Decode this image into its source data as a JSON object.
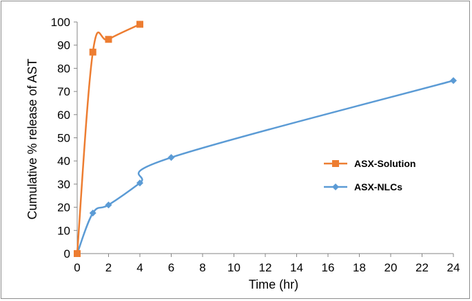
{
  "chart_data": {
    "type": "line",
    "title": "",
    "xlabel": "Time (hr)",
    "ylabel": "Cumulative % release of AST",
    "xlim": [
      0,
      24
    ],
    "ylim": [
      0,
      100
    ],
    "xticks": [
      0,
      2,
      4,
      6,
      8,
      10,
      12,
      14,
      16,
      18,
      20,
      22,
      24
    ],
    "yticks": [
      0,
      10,
      20,
      30,
      40,
      50,
      60,
      70,
      80,
      90,
      100
    ],
    "grid": false,
    "legend_position": "right",
    "series": [
      {
        "name": "ASX-Solution",
        "color": "#ed7d31",
        "marker": "square",
        "points": [
          {
            "x": 0,
            "y": 0
          },
          {
            "x": 1,
            "y": 87
          },
          {
            "x": 2,
            "y": 92.5
          },
          {
            "x": 4,
            "y": 99
          }
        ]
      },
      {
        "name": "ASX-NLCs",
        "color": "#5b9bd5",
        "marker": "diamond",
        "points": [
          {
            "x": 0,
            "y": 0
          },
          {
            "x": 1,
            "y": 17.5
          },
          {
            "x": 2,
            "y": 21
          },
          {
            "x": 4,
            "y": 30.5
          },
          {
            "x": 6,
            "y": 41.5
          },
          {
            "x": 24,
            "y": 74.7
          }
        ]
      }
    ]
  }
}
